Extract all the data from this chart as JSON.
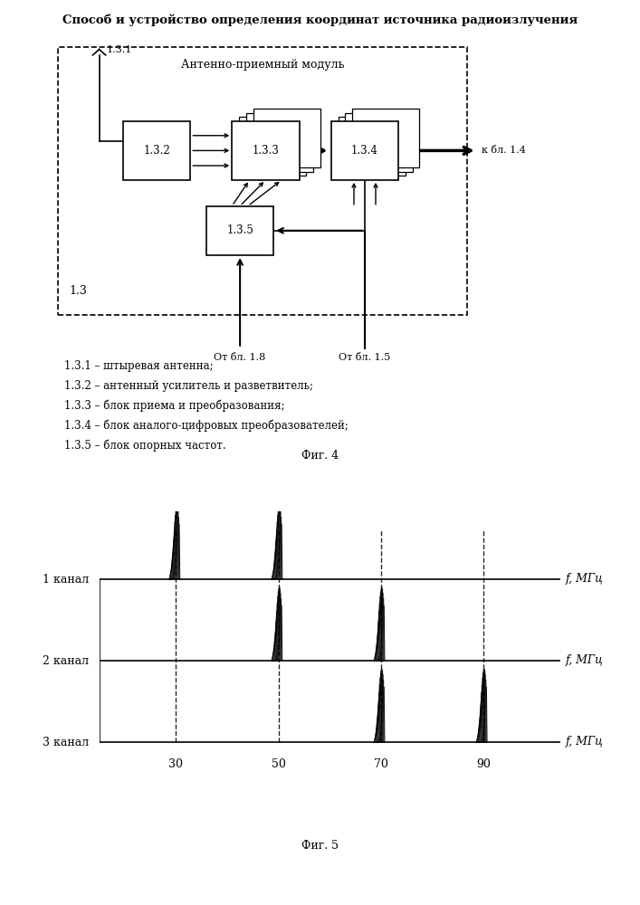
{
  "title": "Способ и устройство определения координат источника радиоизлучения",
  "title_fontsize": 9.5,
  "fig4_label": "Фиг. 4",
  "fig5_label": "Фиг. 5",
  "module_label": "Антенно-приемный модуль",
  "legend_lines": [
    "1.3.1 – штыревая антенна;",
    "1.3.2 – антенный усилитель и разветвитель;",
    "1.3.3 – блок приема и преобразования;",
    "1.3.4 – блок аналого-цифровых преобразователей;",
    "1.3.5 – блок опорных частот."
  ],
  "channel_labels": [
    "1 канал",
    "2 канал",
    "3 канал"
  ],
  "freq_ticks": [
    30,
    50,
    70,
    90
  ],
  "freq_axis_label": "f, МГц"
}
